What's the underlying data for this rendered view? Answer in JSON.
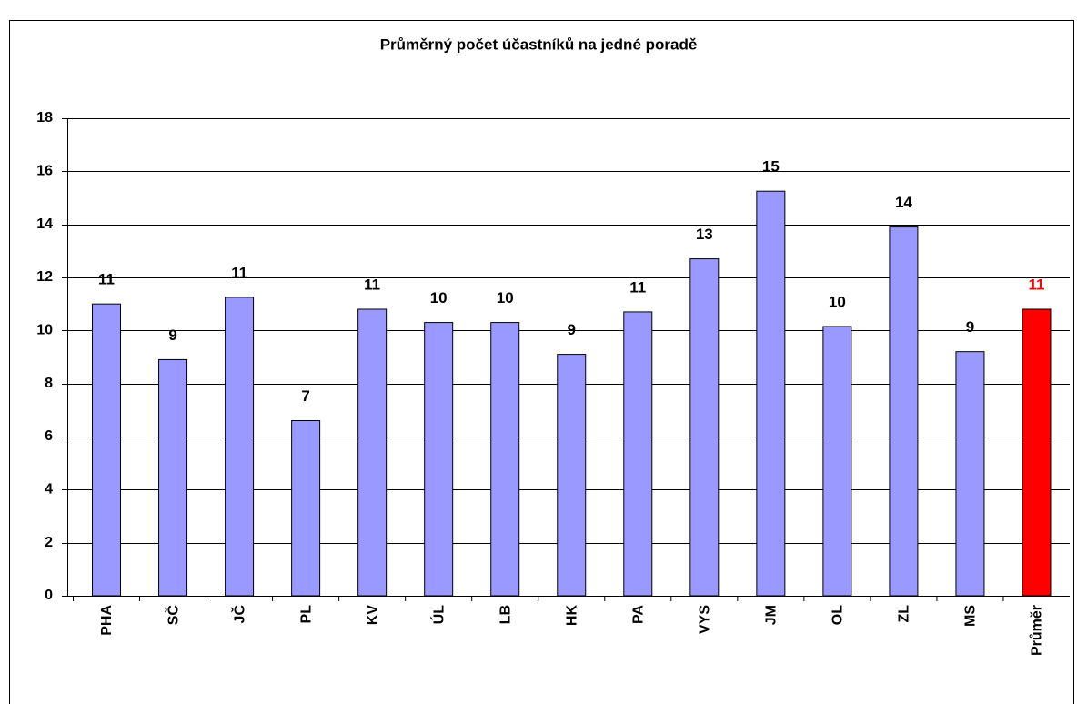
{
  "chart_data": {
    "type": "bar",
    "title": "Průměrný počet účastníků na jedné poradě",
    "categories": [
      "PHA",
      "SČ",
      "JČ",
      "PL",
      "KV",
      "ÚL",
      "LB",
      "HK",
      "PA",
      "VYS",
      "JM",
      "OL",
      "ZL",
      "MS",
      "Průměr"
    ],
    "series": [
      {
        "values": [
          11.0,
          8.9,
          11.25,
          6.6,
          10.8,
          10.3,
          10.3,
          9.1,
          10.7,
          12.7,
          15.25,
          10.15,
          13.9,
          9.2,
          10.8
        ],
        "value_labels": [
          "11",
          "9",
          "11",
          "7",
          "11",
          "10",
          "10",
          "9",
          "11",
          "13",
          "15",
          "10",
          "14",
          "9",
          "11"
        ],
        "colors": [
          "#9999ff",
          "#9999ff",
          "#9999ff",
          "#9999ff",
          "#9999ff",
          "#9999ff",
          "#9999ff",
          "#9999ff",
          "#9999ff",
          "#9999ff",
          "#9999ff",
          "#9999ff",
          "#9999ff",
          "#9999ff",
          "#ff0000"
        ],
        "label_colors": [
          "#000000",
          "#000000",
          "#000000",
          "#000000",
          "#000000",
          "#000000",
          "#000000",
          "#000000",
          "#000000",
          "#000000",
          "#000000",
          "#000000",
          "#000000",
          "#000000",
          "#ff0000"
        ]
      }
    ],
    "ylim": [
      0,
      18
    ],
    "yticks": [
      0,
      2,
      4,
      6,
      8,
      10,
      12,
      14,
      16,
      18
    ],
    "grid": true
  }
}
